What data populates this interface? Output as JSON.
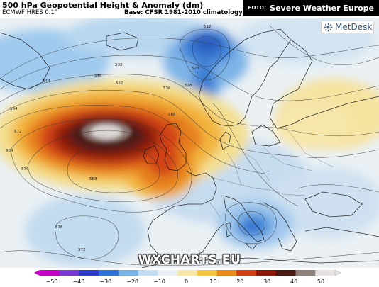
{
  "header": {
    "title": "500 hPa Geopotential Height & Anomaly (dm)",
    "model": "ECMWF HRES 0.1°",
    "base": "Base: CFSR 1981-2010 climatology"
  },
  "credit": {
    "prefix": "FOTO:",
    "source": "Severe Weather Europe"
  },
  "logo": {
    "name": "MetDesk",
    "icon": "metdesk-logo-icon"
  },
  "watermark": "WXCHARTS.EU",
  "colorbar": {
    "ticks": [
      "−50",
      "−40",
      "−30",
      "−20",
      "−10",
      "0",
      "10",
      "20",
      "30",
      "40",
      "50"
    ],
    "colors": [
      "#c400c4",
      "#7a38d2",
      "#2f3fc4",
      "#2f72d6",
      "#79b3e8",
      "#c2dcf2",
      "#eaf1f6",
      "#f6e7a8",
      "#f4c443",
      "#e98a1c",
      "#cf3e12",
      "#8e1a0a",
      "#4a1912",
      "#8f7f7b",
      "#e6e2e2"
    ]
  },
  "contour_labels": [
    "564",
    "572",
    "584",
    "548",
    "552",
    "544",
    "536",
    "528",
    "520",
    "512",
    "532",
    "568",
    "576",
    "588",
    "576",
    "572"
  ]
}
